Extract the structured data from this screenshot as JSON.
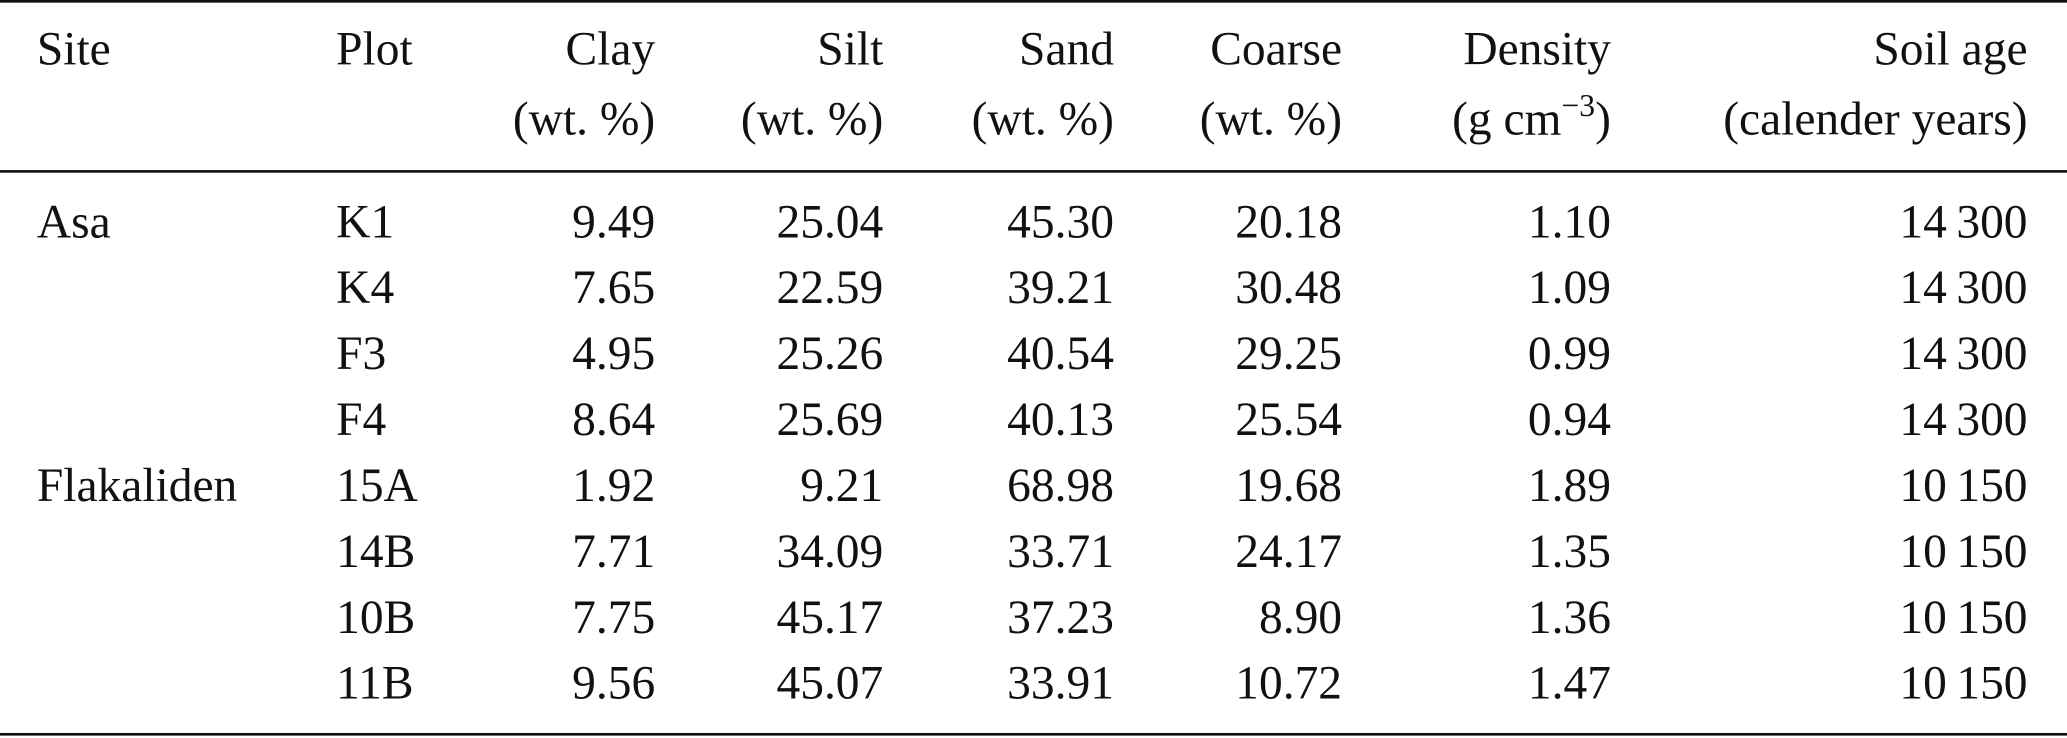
{
  "table": {
    "columns": [
      {
        "name": "Site"
      },
      {
        "name": "Plot"
      },
      {
        "name": "Clay",
        "unit": "(wt. %)"
      },
      {
        "name": "Silt",
        "unit": "(wt. %)"
      },
      {
        "name": "Sand",
        "unit": "(wt. %)"
      },
      {
        "name": "Coarse",
        "unit": "(wt. %)"
      },
      {
        "name": "Density",
        "unit": {
          "text": "(g cm",
          "superscript": "−3",
          "closing": ")"
        }
      },
      {
        "name": "Soil age",
        "unit": "(calender years)"
      }
    ],
    "groups": [
      {
        "site": "Asa",
        "rows": [
          [
            "K1",
            "9.49",
            "25.04",
            "45.30",
            "20.18",
            "1.10",
            "14 300"
          ],
          [
            "K4",
            "7.65",
            "22.59",
            "39.21",
            "30.48",
            "1.09",
            "14 300"
          ],
          [
            "F3",
            "4.95",
            "25.26",
            "40.54",
            "29.25",
            "0.99",
            "14 300"
          ],
          [
            "F4",
            "8.64",
            "25.69",
            "40.13",
            "25.54",
            "0.94",
            "14 300"
          ]
        ]
      },
      {
        "site": "Flakaliden",
        "rows": [
          [
            "15A",
            "1.92",
            "9.21",
            "68.98",
            "19.68",
            "1.89",
            "10 150"
          ],
          [
            "14B",
            "7.71",
            "34.09",
            "33.71",
            "24.17",
            "1.35",
            "10 150"
          ],
          [
            "10B",
            "7.75",
            "45.17",
            "37.23",
            "8.90",
            "1.36",
            "10 150"
          ],
          [
            "11B",
            "9.56",
            "45.07",
            "33.91",
            "10.72",
            "1.47",
            "10 150"
          ]
        ]
      }
    ]
  }
}
